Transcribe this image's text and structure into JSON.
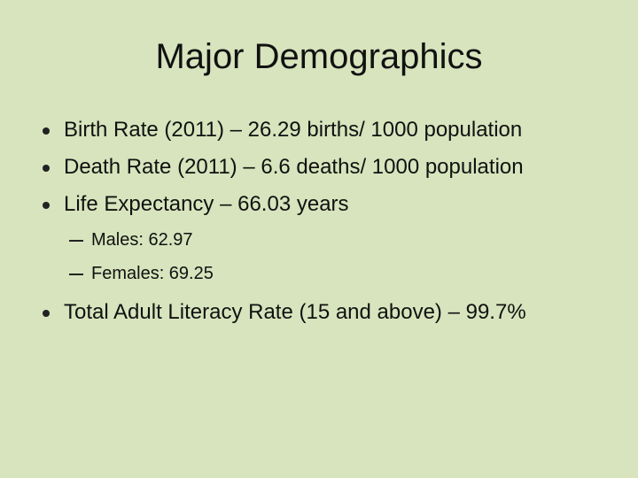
{
  "title": "Major Demographics",
  "bullets": [
    {
      "text": "Birth Rate (2011) – 26.29 births/ 1000 population"
    },
    {
      "text": "Death Rate (2011) – 6.6 deaths/ 1000 population"
    },
    {
      "text": "Life Expectancy – 66.03 years",
      "sub": [
        "Males: 62.97",
        "Females: 69.25"
      ]
    },
    {
      "text": "Total Adult Literacy Rate (15 and above) – 99.7%"
    }
  ]
}
